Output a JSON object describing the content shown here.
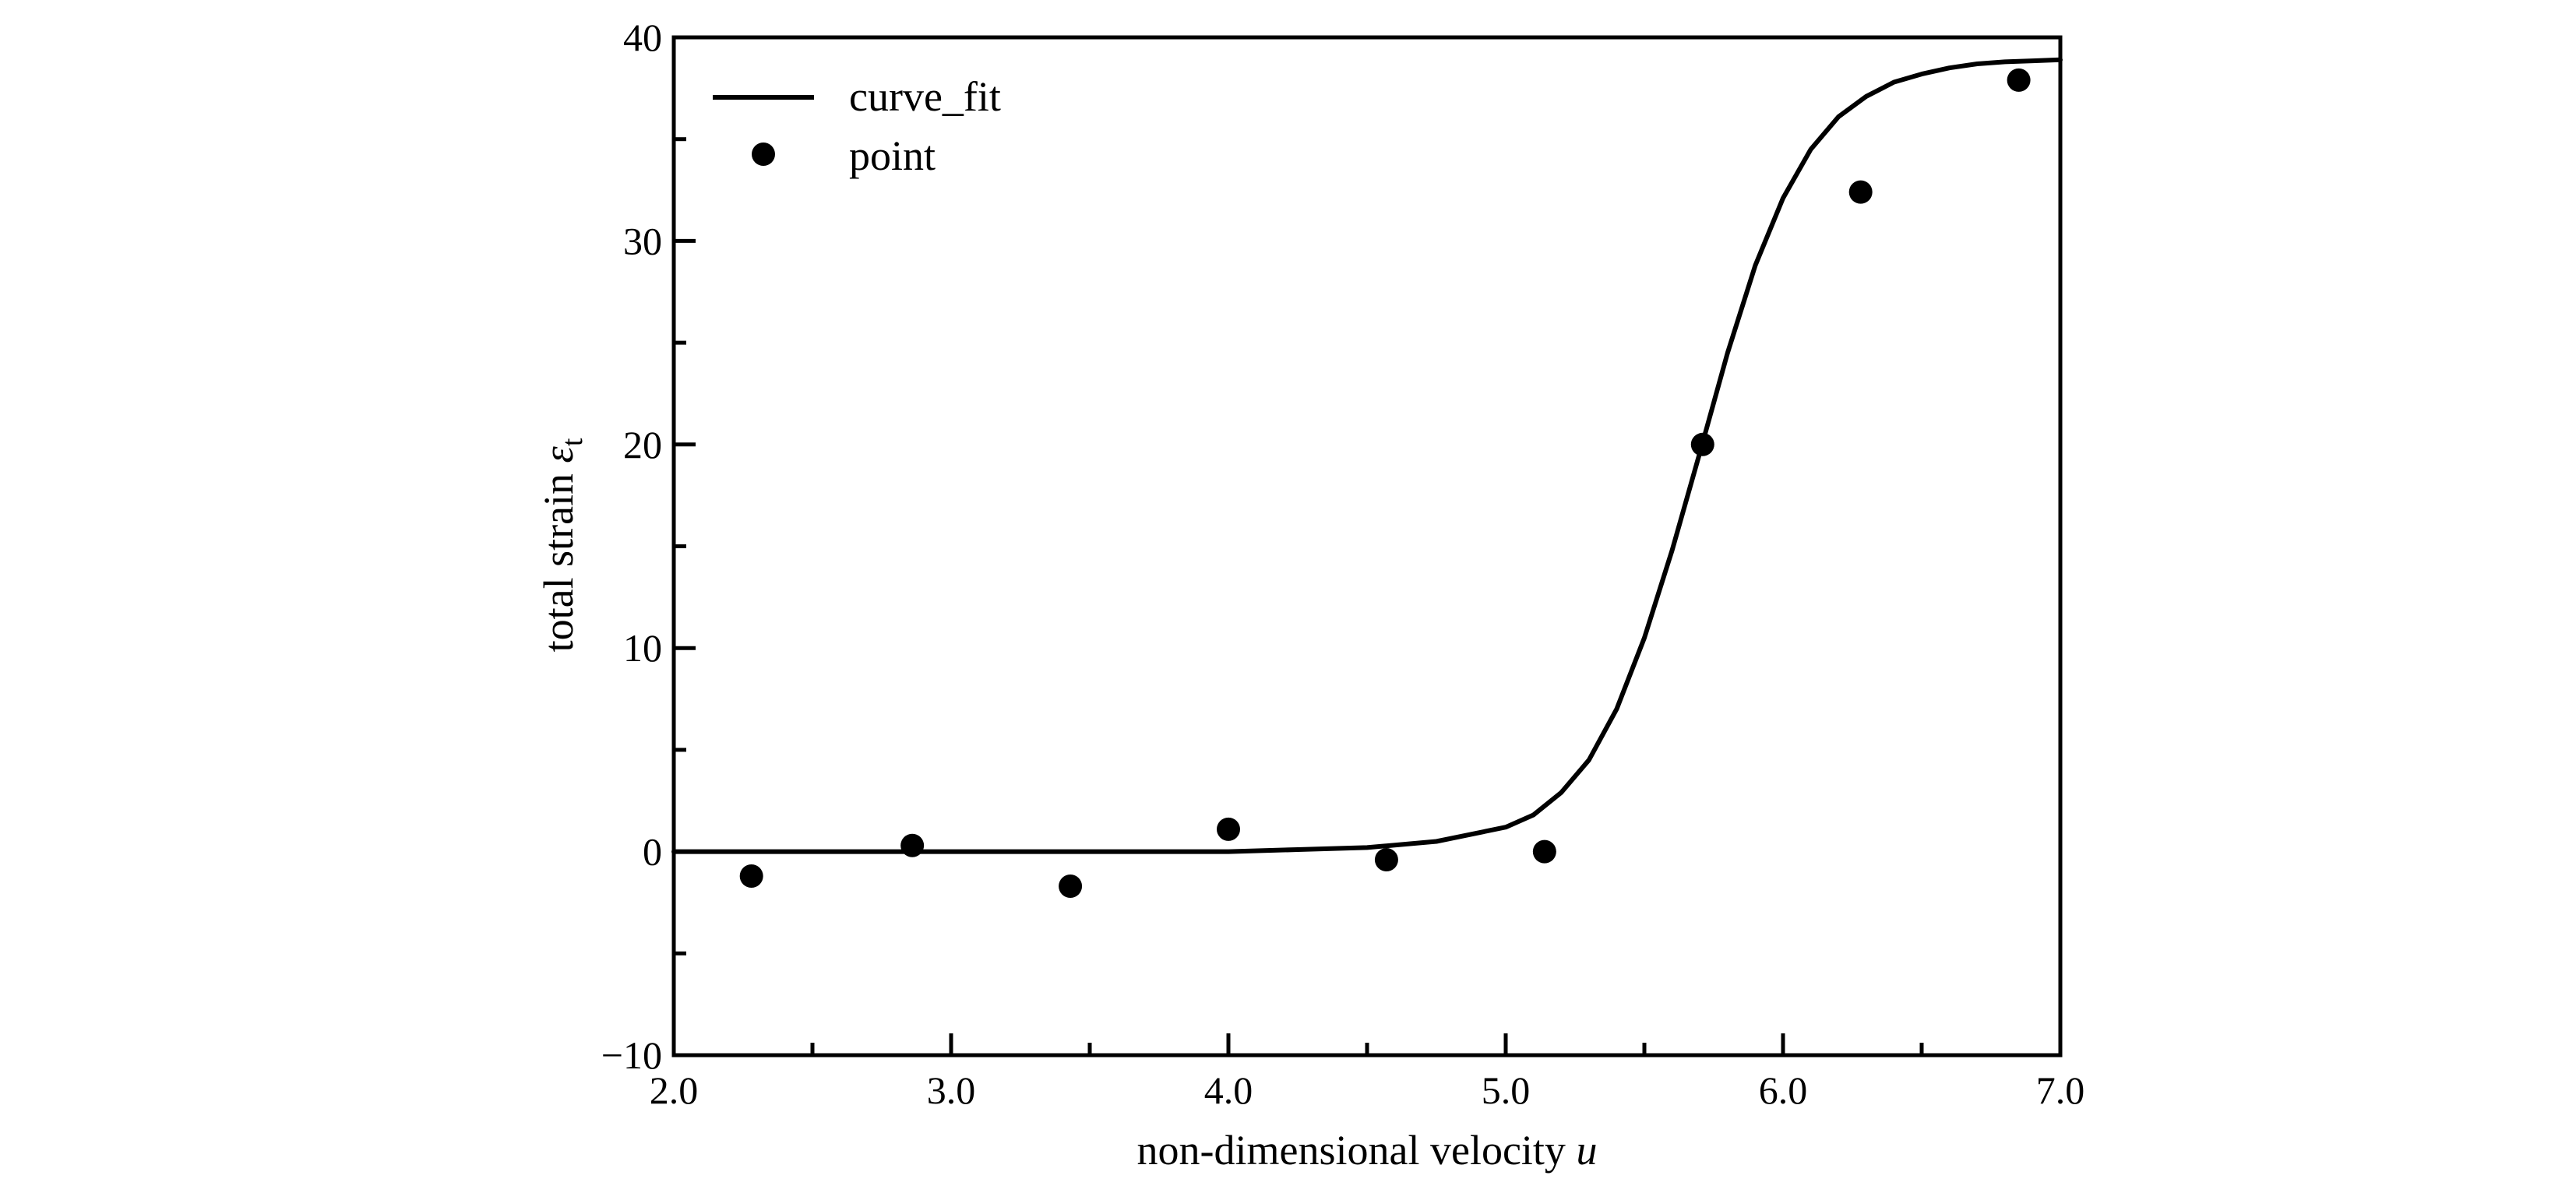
{
  "chart_data": {
    "type": "scatter",
    "xlabel": "non-dimensional velocity",
    "xlabel_var": "u",
    "ylabel": "total strain",
    "ylabel_var": "ε",
    "ylabel_sub": "t",
    "xlim": [
      2.0,
      7.0
    ],
    "ylim": [
      -10,
      40
    ],
    "x_ticks": [
      2.0,
      3.0,
      4.0,
      5.0,
      6.0,
      7.0
    ],
    "x_tick_labels": [
      "2.0",
      "3.0",
      "4.0",
      "5.0",
      "6.0",
      "7.0"
    ],
    "x_minor_ticks": [
      2.5,
      3.5,
      4.5,
      5.5,
      6.5
    ],
    "y_ticks": [
      -10,
      0,
      10,
      20,
      30,
      40
    ],
    "y_tick_labels": [
      "−10",
      "0",
      "10",
      "20",
      "30",
      "40"
    ],
    "y_minor_ticks": [
      -5,
      5,
      15,
      25,
      35
    ],
    "legend_position": "top-left",
    "series": [
      {
        "name": "curve_fit",
        "kind": "line",
        "color": "#000000",
        "x": [
          2.0,
          2.5,
          3.0,
          3.5,
          4.0,
          4.25,
          4.5,
          4.75,
          5.0,
          5.1,
          5.2,
          5.3,
          5.4,
          5.5,
          5.6,
          5.7,
          5.8,
          5.9,
          6.0,
          6.1,
          6.2,
          6.3,
          6.4,
          6.5,
          6.6,
          6.7,
          6.8,
          6.9,
          7.0
        ],
        "y": [
          0.0,
          0.0,
          0.0,
          0.0,
          0.0,
          0.1,
          0.2,
          0.5,
          1.2,
          1.8,
          2.9,
          4.5,
          7.0,
          10.5,
          14.8,
          19.6,
          24.5,
          28.8,
          32.1,
          34.5,
          36.1,
          37.1,
          37.8,
          38.2,
          38.5,
          38.7,
          38.8,
          38.85,
          38.9
        ]
      },
      {
        "name": "point",
        "kind": "scatter",
        "color": "#000000",
        "x": [
          2.28,
          2.86,
          3.43,
          4.0,
          4.57,
          5.14,
          5.71,
          6.28,
          6.85
        ],
        "y": [
          -1.2,
          0.3,
          -1.7,
          1.1,
          -0.4,
          0.0,
          20.0,
          32.4,
          37.9
        ]
      }
    ]
  }
}
